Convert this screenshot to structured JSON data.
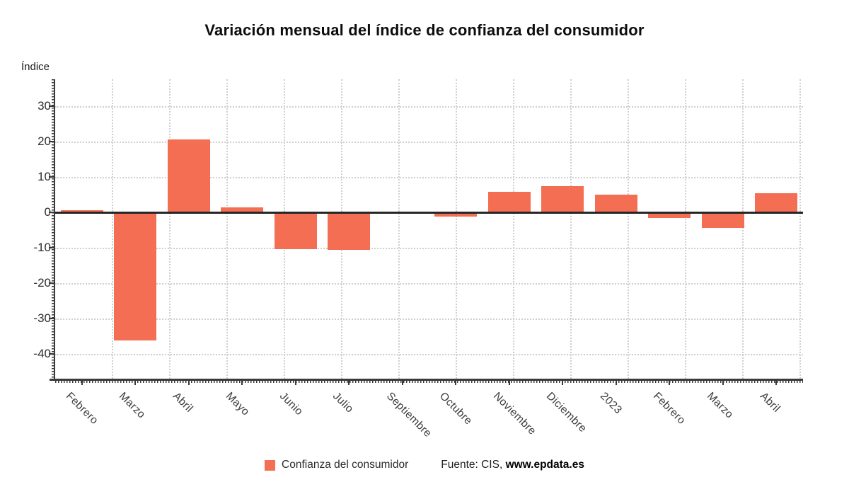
{
  "title": "Variación mensual del índice de confianza del consumidor",
  "y_axis_unit": "Índice",
  "chart_data": {
    "type": "bar",
    "title": "Variación mensual del índice de confianza del consumidor",
    "xlabel": "",
    "ylabel": "Índice",
    "categories": [
      "Febrero",
      "Marzo",
      "Abril",
      "Mayo",
      "Junio",
      "Julio",
      "Septiembre",
      "Octubre",
      "Noviembre",
      "Diciembre",
      "2023",
      "Febrero",
      "Marzo",
      "Abril"
    ],
    "values": [
      0.6,
      -36.1,
      20.7,
      1.4,
      -10.3,
      -10.5,
      0.2,
      -1.1,
      5.8,
      7.5,
      5.0,
      -1.5,
      -4.3,
      5.4
    ],
    "series_name": "Confianza del consumidor",
    "y_ticks": [
      30,
      20,
      10,
      0,
      -10,
      -20,
      -30,
      -40
    ],
    "ylim": [
      -47.0,
      37.6
    ],
    "grid": true,
    "legend_position": "bottom",
    "bar_color": "#f36e52"
  },
  "legend": {
    "series_label": "Confianza del consumidor",
    "source_prefix": "Fuente: CIS, ",
    "source_link": "www.epdata.es"
  },
  "colors": {
    "bar": "#f36e52",
    "gridline": "#cfcfcf",
    "axis": "#3a3a3a",
    "zero_line": "#262626",
    "title_text": "#0d0d0d",
    "tick_text": "#2e2e2e"
  }
}
